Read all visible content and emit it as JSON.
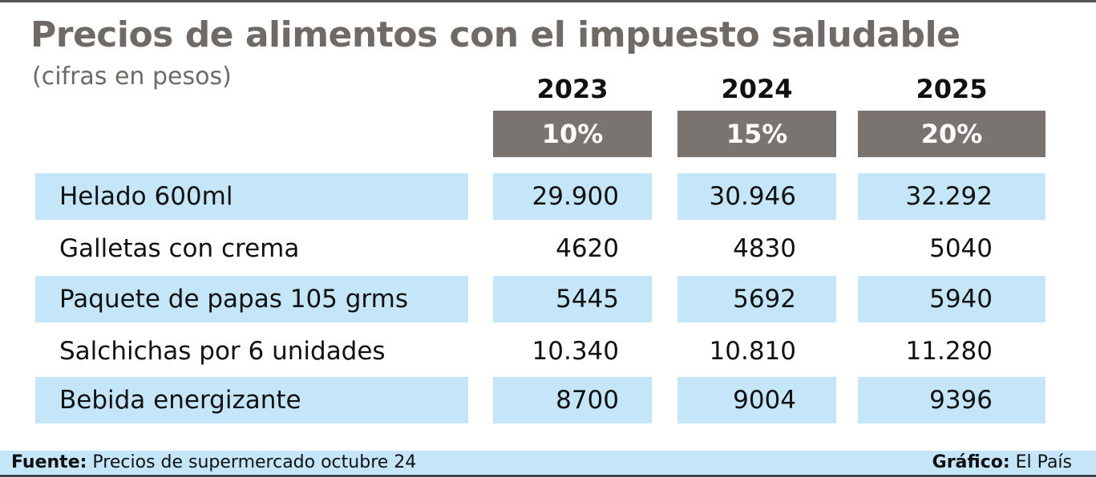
{
  "title": "Precios de alimentos con el impuesto saludable",
  "subtitle": "(cifras en pesos)",
  "colors": {
    "title": "#6f6a66",
    "header_fill": "#7a7470",
    "row_shade": "#c4e6f8"
  },
  "chart_data": {
    "type": "table",
    "columns": [
      {
        "year": "2023",
        "rate": "10%"
      },
      {
        "year": "2024",
        "rate": "15%"
      },
      {
        "year": "2025",
        "rate": "20%"
      }
    ],
    "rows": [
      {
        "item": "Helado 600ml",
        "values": [
          "29.900",
          "30.946",
          "32.292"
        ]
      },
      {
        "item": "Galletas con crema",
        "values": [
          "4620",
          "4830",
          "5040"
        ]
      },
      {
        "item": "Paquete de papas 105 grms",
        "values": [
          "5445",
          "5692",
          "5940"
        ]
      },
      {
        "item": "Salchichas por 6 unidades",
        "values": [
          "10.340",
          "10.810",
          "11.280"
        ]
      },
      {
        "item": "Bebida energizante",
        "values": [
          "8700",
          "9004",
          "9396"
        ]
      }
    ]
  },
  "footer": {
    "source_label": "Fuente:",
    "source_text": "Precios de supermercado octubre 24",
    "credit_label": "Gráfico:",
    "credit_text": "El País"
  }
}
